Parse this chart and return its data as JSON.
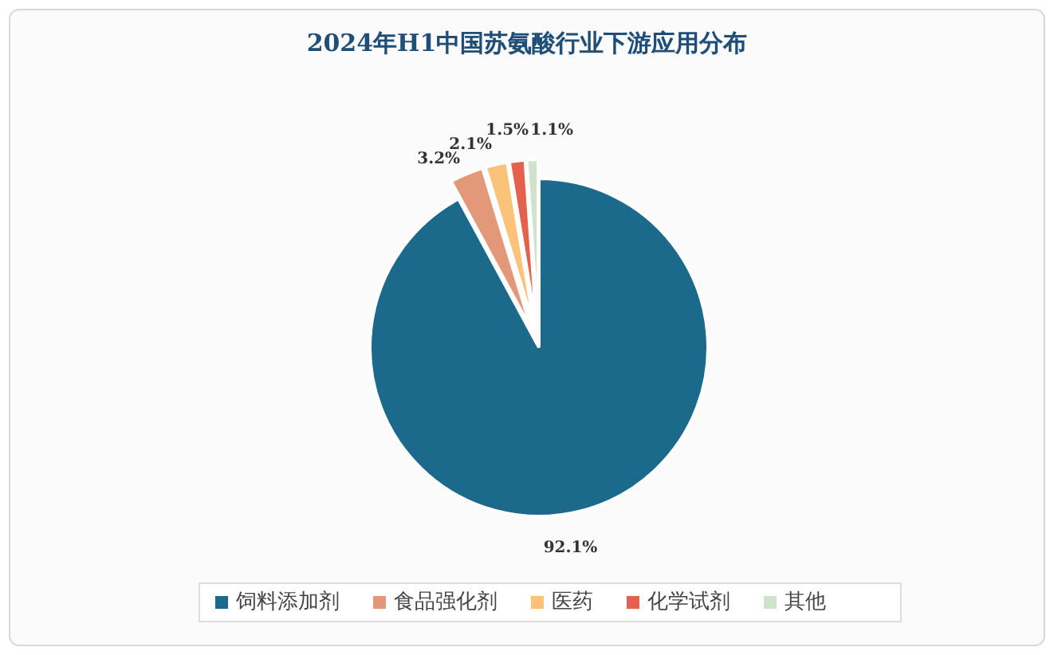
{
  "chart_data": {
    "type": "pie",
    "title": "2024年H1中国苏氨酸行业下游应用分布",
    "categories": [
      "饲料添加剂",
      "食品强化剂",
      "医药",
      "化学试剂",
      "其他"
    ],
    "values": [
      92.1,
      3.2,
      2.1,
      1.5,
      1.1
    ],
    "colors": [
      "#1b6a8c",
      "#e3987a",
      "#fbc27a",
      "#e4614d",
      "#cfe3cc"
    ],
    "value_labels": [
      "92.1%",
      "3.2%",
      "2.1%",
      "1.5%",
      "1.1%"
    ],
    "legend": "bottom"
  }
}
